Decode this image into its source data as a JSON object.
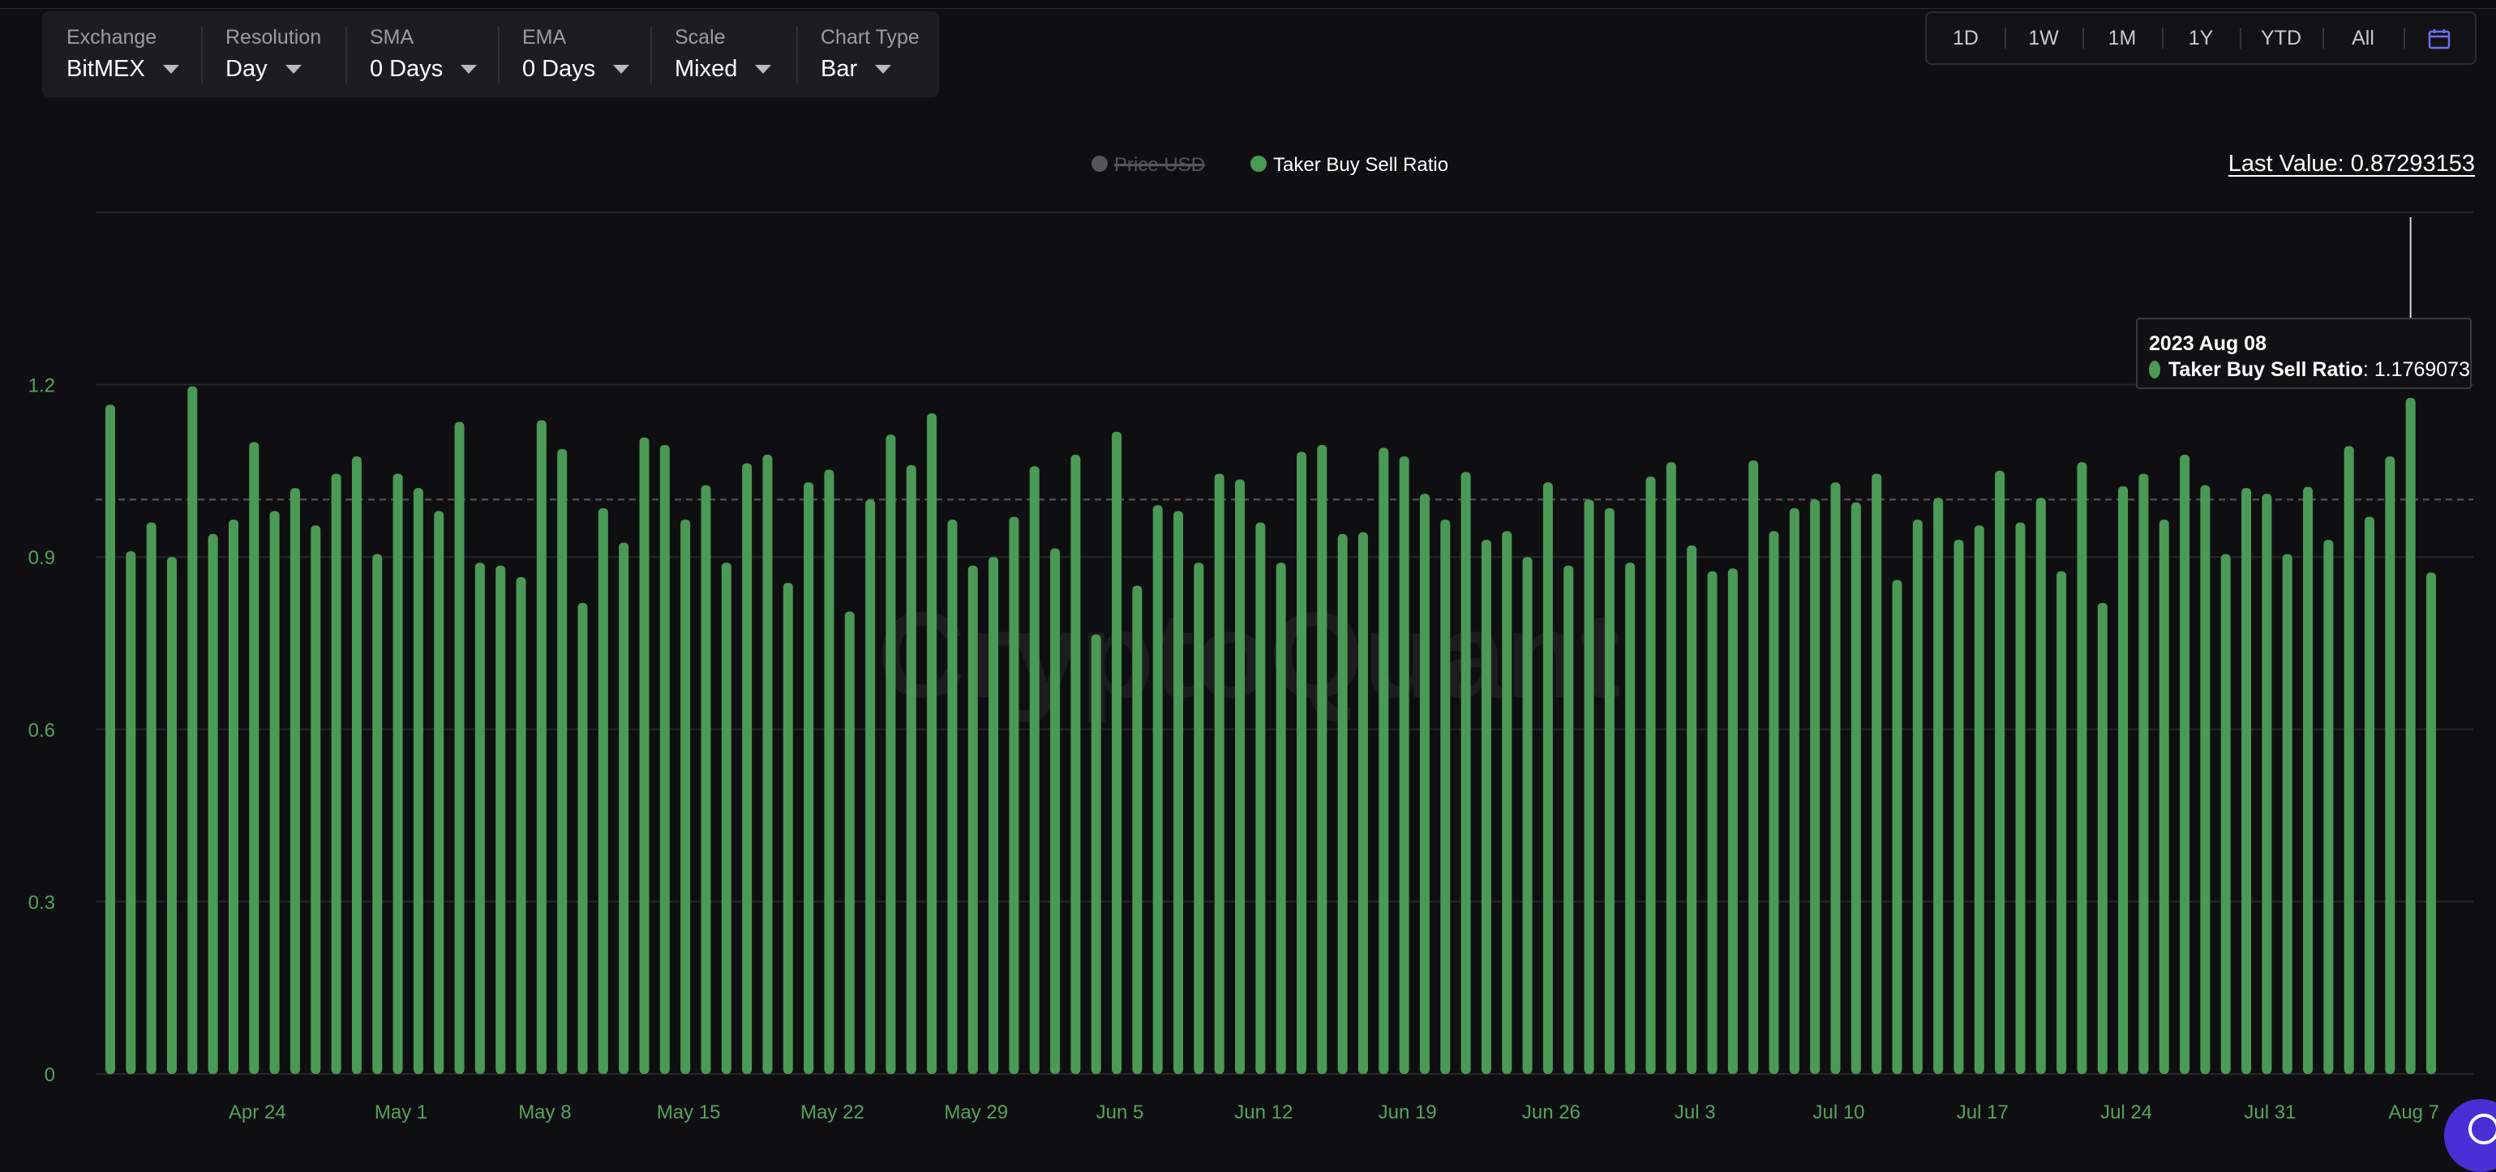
{
  "controls": [
    {
      "label": "Exchange",
      "value": "BitMEX"
    },
    {
      "label": "Resolution",
      "value": "Day"
    },
    {
      "label": "SMA",
      "value": "0 Days"
    },
    {
      "label": "EMA",
      "value": "0 Days"
    },
    {
      "label": "Scale",
      "value": "Mixed"
    },
    {
      "label": "Chart Type",
      "value": "Bar"
    }
  ],
  "ranges": [
    "1D",
    "1W",
    "1M",
    "1Y",
    "YTD",
    "All"
  ],
  "calendar_icon": "calendar-icon",
  "last_value": "Last Value: 0.87293153",
  "watermark": "CryptoQuant",
  "tooltip": {
    "date": "2023 Aug 08",
    "series": "Taker Buy Sell Ratio",
    "value": ": 1.1769073"
  },
  "colors": {
    "bar": "#4a9a55",
    "background": "#0f0f12",
    "axis_label": "#58a05f",
    "disabled_series": "#55555c"
  },
  "chart_data": {
    "type": "bar",
    "title": "",
    "legend": [
      {
        "name": "Price USD",
        "enabled": false
      },
      {
        "name": "Taker Buy Sell Ratio",
        "enabled": true
      }
    ],
    "legend_position": "top-center",
    "x_start": "2023-04-17",
    "x_end": "2023-08-09",
    "x_ticks": [
      "Apr 24",
      "May 1",
      "May 8",
      "May 15",
      "May 22",
      "May 29",
      "Jun 5",
      "Jun 12",
      "Jun 19",
      "Jun 26",
      "Jul 3",
      "Jul 10",
      "Jul 17",
      "Jul 24",
      "Jul 31",
      "Aug 7"
    ],
    "y_ticks": [
      "0",
      "0.3",
      "0.6",
      "0.9",
      "1.2"
    ],
    "ylim": [
      0,
      1.5
    ],
    "reference_line": 1.0,
    "grid": true,
    "series": [
      {
        "name": "Taker Buy Sell Ratio",
        "values": [
          1.165,
          0.91,
          0.96,
          0.9,
          1.197,
          0.94,
          0.965,
          1.1,
          0.98,
          1.02,
          0.955,
          1.045,
          1.075,
          0.905,
          1.045,
          1.02,
          0.98,
          1.135,
          0.89,
          0.885,
          0.865,
          1.138,
          1.088,
          0.82,
          0.985,
          0.925,
          1.108,
          1.095,
          0.965,
          1.025,
          0.89,
          1.063,
          1.078,
          0.855,
          1.03,
          1.052,
          0.805,
          1.0,
          1.113,
          1.06,
          1.15,
          0.965,
          0.885,
          0.9,
          0.97,
          1.058,
          0.915,
          1.078,
          0.765,
          1.118,
          0.85,
          0.99,
          0.98,
          0.89,
          1.045,
          1.035,
          0.96,
          0.89,
          1.083,
          1.095,
          0.94,
          0.943,
          1.09,
          1.075,
          1.01,
          0.965,
          1.048,
          0.93,
          0.945,
          0.9,
          1.03,
          0.885,
          1.0,
          0.985,
          0.89,
          1.04,
          1.065,
          0.92,
          0.875,
          0.88,
          1.068,
          0.945,
          0.985,
          1.0,
          1.03,
          0.995,
          1.045,
          0.86,
          0.965,
          1.003,
          0.93,
          0.955,
          1.05,
          0.96,
          1.003,
          0.875,
          1.065,
          0.82,
          1.023,
          1.045,
          0.965,
          1.078,
          1.025,
          0.905,
          1.02,
          1.01,
          0.905,
          1.022,
          0.93,
          1.093,
          0.97,
          1.075,
          1.177,
          0.873
        ]
      }
    ]
  }
}
